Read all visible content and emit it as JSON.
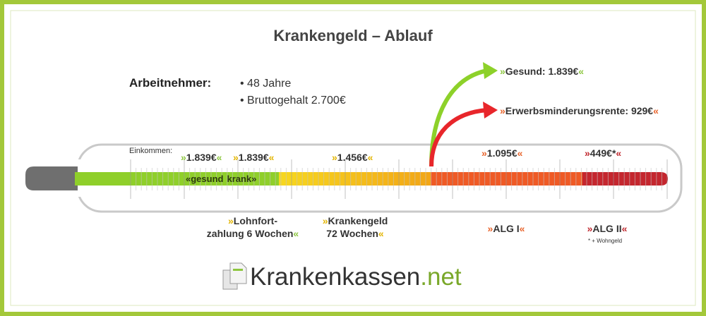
{
  "title": "Krankengeld – Ablauf",
  "employee": {
    "label": "Arbeitnehmer:",
    "items": [
      "48 Jahre",
      "Bruttogehalt 2.700€"
    ]
  },
  "outcomes": [
    {
      "open": "»",
      "text": "Gesund: 1.839€",
      "close": "«"
    },
    {
      "open": "»",
      "text": "Erwerbsminderungsrente: 929€",
      "close": "«"
    }
  ],
  "thermometer": {
    "axis_label": "Einkommen:",
    "amounts": [
      {
        "open": "»",
        "text": "1.839€",
        "close": "«"
      },
      {
        "open": "»",
        "text": "1.839€",
        "close": "«"
      },
      {
        "open": "»",
        "text": "1.456€",
        "close": "«"
      },
      {
        "open": "»",
        "text": "1.095€",
        "close": "«"
      },
      {
        "open": "»",
        "text": "449€*",
        "close": "«"
      }
    ],
    "state": {
      "open": "«",
      "healthy": "gesund",
      "sick": "krank",
      "close": "»"
    }
  },
  "phases": [
    {
      "open": "»",
      "lines": [
        "Lohnfort-",
        "zahlung 6 Wochen"
      ],
      "close": "«"
    },
    {
      "open": "»",
      "lines": [
        "Krankengeld",
        "72 Wochen"
      ],
      "close": "«"
    },
    {
      "open": "»",
      "lines": [
        "ALG I"
      ],
      "close": "«"
    },
    {
      "open": "»",
      "lines": [
        "ALG II"
      ],
      "close": "«"
    }
  ],
  "footnote": "* + Wohngeld",
  "logo": {
    "name": "Krankenkassen",
    "suffix": ".net"
  }
}
